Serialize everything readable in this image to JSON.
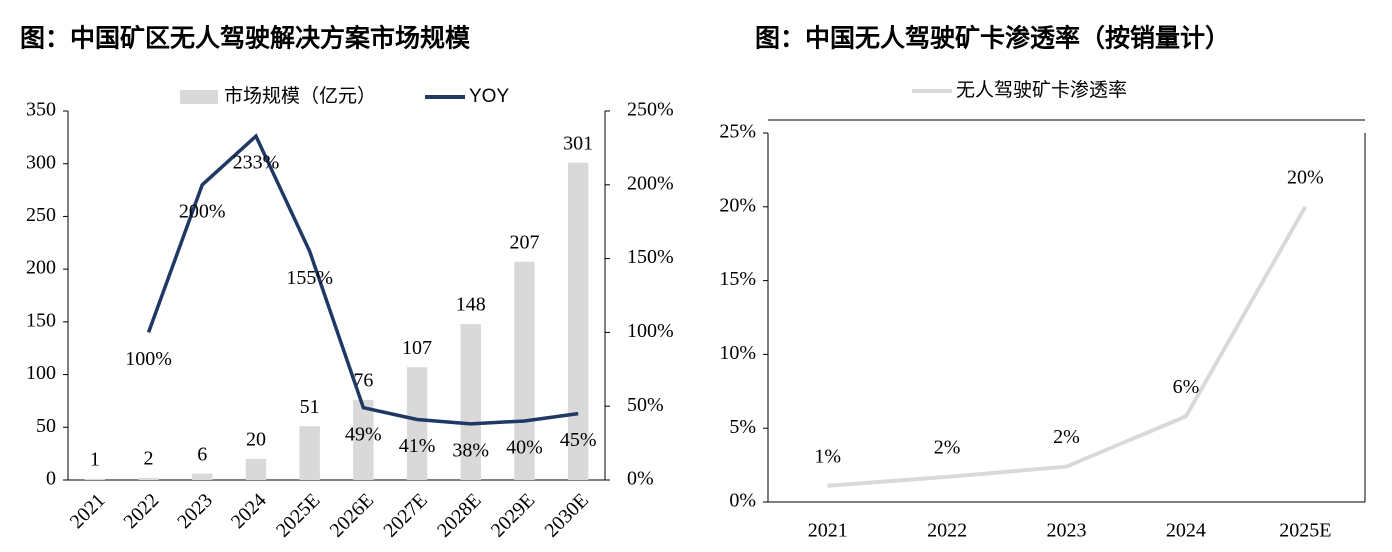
{
  "chart_data": [
    {
      "type": "bar",
      "title": "图：中国矿区无人驾驶解决方案市场规模",
      "categories": [
        "2021",
        "2022",
        "2023",
        "2024",
        "2025E",
        "2026E",
        "2027E",
        "2028E",
        "2029E",
        "2030E"
      ],
      "series": [
        {
          "name": "市场规模（亿元）",
          "color": "#d9d9d9",
          "values": [
            1,
            2,
            6,
            20,
            51,
            76,
            107,
            148,
            207,
            301
          ]
        },
        {
          "name": "YOY",
          "type": "line",
          "axis": "y2",
          "color": "#1f3864",
          "values": [
            null,
            100,
            200,
            233,
            155,
            49,
            41,
            38,
            40,
            45
          ],
          "value_labels": [
            null,
            "100%",
            "200%",
            "233%",
            "155%",
            "49%",
            "41%",
            "38%",
            "40%",
            "45%"
          ]
        }
      ],
      "ylim": [
        0,
        350
      ],
      "yticks": [
        0,
        50,
        100,
        150,
        200,
        250,
        300,
        350
      ],
      "y2lim": [
        0,
        250
      ],
      "y2ticks": [
        {
          "value": 0,
          "label": "0%"
        },
        {
          "value": 50,
          "label": "50%"
        },
        {
          "value": 100,
          "label": "100%"
        },
        {
          "value": 150,
          "label": "150%"
        },
        {
          "value": 200,
          "label": "200%"
        },
        {
          "value": 250,
          "label": "250%"
        }
      ]
    },
    {
      "type": "line",
      "title": "图：中国无人驾驶矿卡渗透率（按销量计）",
      "categories": [
        "2021",
        "2022",
        "2023",
        "2024",
        "2025E"
      ],
      "series": [
        {
          "name": "无人驾驶矿卡渗透率",
          "color": "#d9d9d9",
          "values": [
            1.1,
            1.7,
            2.4,
            5.8,
            20
          ],
          "value_labels": [
            "1%",
            "2%",
            "2%",
            "6%",
            "20%"
          ]
        }
      ],
      "ylim": [
        0,
        25
      ],
      "yticks": [
        {
          "value": 0,
          "label": "0%"
        },
        {
          "value": 5,
          "label": "5%"
        },
        {
          "value": 10,
          "label": "10%"
        },
        {
          "value": 15,
          "label": "15%"
        },
        {
          "value": 20,
          "label": "20%"
        },
        {
          "value": 25,
          "label": "25%"
        }
      ]
    }
  ]
}
